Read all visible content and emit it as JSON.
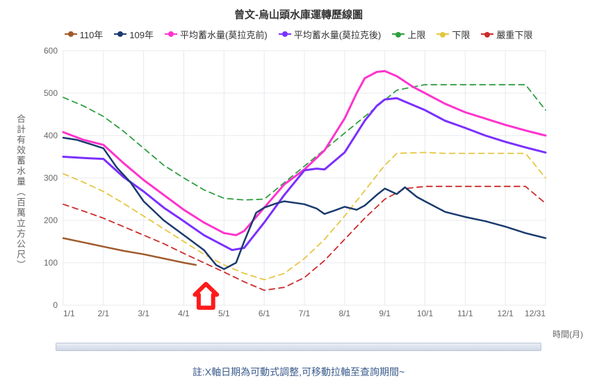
{
  "chart": {
    "type": "line",
    "title": "曾文-烏山頭水庫運轉歷線圖",
    "title_fontsize": 15,
    "ylabel": "合計有效蓄水量︵百萬立方公尺︶",
    "xlabel_right": "時間(月)",
    "note": "註:X軸日期為可動式調整,可移動拉軸至查詢期間~",
    "background_color": "#ffffff",
    "plot_border_color": "#cfd6e0",
    "grid_color": "#e6e9ee",
    "xlim": [
      "1/1",
      "12/31"
    ],
    "xticks": [
      "1/1",
      "2/1",
      "3/1",
      "4/1",
      "5/1",
      "6/1",
      "7/1",
      "8/1",
      "9/1",
      "10/1",
      "11/1",
      "12/1",
      "12/31"
    ],
    "ylim": [
      0,
      600
    ],
    "ytick_step": 100,
    "yticks": [
      0,
      100,
      200,
      300,
      400,
      500,
      600
    ],
    "tick_fontsize": 12,
    "legend_items": [
      {
        "name": "110年",
        "color": "#a05a2c",
        "lw": 2,
        "dash": "",
        "dot": true
      },
      {
        "name": "109年",
        "color": "#1a3a6e",
        "lw": 2,
        "dash": "",
        "dot": true
      },
      {
        "name": "平均蓄水量(莫拉克前)",
        "color": "#ff33cc",
        "lw": 2.5,
        "dash": "",
        "dot": true
      },
      {
        "name": "平均蓄水量(莫拉克後)",
        "color": "#7b2fff",
        "lw": 2.5,
        "dash": "",
        "dot": true
      },
      {
        "name": "上限",
        "color": "#2e9e3f",
        "lw": 1.5,
        "dash": "6,5",
        "dot": true
      },
      {
        "name": "下限",
        "color": "#e6c642",
        "lw": 1.5,
        "dash": "6,5",
        "dot": true
      },
      {
        "name": "嚴重下限",
        "color": "#cc2b2b",
        "lw": 1.5,
        "dash": "6,5",
        "dot": true
      }
    ],
    "xvals_month": [
      1,
      1.33,
      1.67,
      2,
      2.33,
      2.67,
      3,
      3.33,
      3.67,
      4,
      4.33,
      4.67,
      5,
      5.33,
      5.67,
      6,
      6.33,
      6.67,
      7,
      7.33,
      7.67,
      8,
      8.33,
      8.5,
      8.67,
      9,
      9.33,
      9.67,
      10,
      10.33,
      10.67,
      11,
      11.33,
      11.67,
      12,
      12.5,
      13
    ],
    "series": {
      "y110": {
        "color": "#a05a2c",
        "lw": 2.5,
        "dash": "",
        "x": [
          1,
          1.5,
          2,
          2.5,
          3,
          3.5,
          4,
          4.3
        ],
        "y": [
          158,
          148,
          138,
          128,
          120,
          110,
          100,
          95
        ]
      },
      "y109": {
        "color": "#1a3a6e",
        "lw": 2.5,
        "dash": "",
        "x": [
          1,
          1.33,
          1.67,
          2,
          2.33,
          2.67,
          3,
          3.5,
          4,
          4.5,
          4.8,
          5,
          5.3,
          5.5,
          5.8,
          6,
          6.3,
          6.5,
          7,
          7.3,
          7.5,
          7.8,
          8,
          8.3,
          8.5,
          8.8,
          9,
          9.3,
          9.5,
          9.8,
          10,
          10.5,
          11,
          11.5,
          12,
          12.5,
          13
        ],
        "y": [
          395,
          390,
          380,
          370,
          325,
          290,
          245,
          200,
          165,
          130,
          95,
          85,
          100,
          150,
          218,
          230,
          240,
          245,
          238,
          228,
          215,
          225,
          232,
          225,
          235,
          260,
          275,
          262,
          278,
          255,
          245,
          220,
          208,
          198,
          185,
          170,
          158
        ]
      },
      "pre_morakot": {
        "color": "#ff33cc",
        "lw": 3,
        "dash": "",
        "x": [
          1,
          1.5,
          2,
          2.5,
          3,
          3.5,
          4,
          4.5,
          5,
          5.3,
          5.5,
          6,
          6.5,
          7,
          7.5,
          8,
          8.3,
          8.5,
          8.8,
          9,
          9.3,
          9.7,
          10,
          10.5,
          11,
          11.5,
          12,
          12.5,
          13
        ],
        "y": [
          408,
          390,
          378,
          335,
          295,
          260,
          225,
          195,
          170,
          165,
          175,
          230,
          285,
          320,
          365,
          440,
          500,
          535,
          550,
          552,
          540,
          515,
          500,
          475,
          455,
          440,
          425,
          412,
          400
        ]
      },
      "post_morakot": {
        "color": "#7b2fff",
        "lw": 3,
        "dash": "",
        "x": [
          1,
          1.5,
          2,
          2.5,
          3,
          3.5,
          4,
          4.5,
          5,
          5.2,
          5.5,
          6,
          6.5,
          7,
          7.3,
          7.5,
          8,
          8.5,
          8.8,
          9,
          9.3,
          9.5,
          10,
          10.5,
          11,
          11.5,
          12,
          12.5,
          13
        ],
        "y": [
          350,
          347,
          345,
          302,
          268,
          230,
          198,
          165,
          140,
          130,
          135,
          195,
          260,
          318,
          322,
          320,
          360,
          435,
          470,
          485,
          488,
          480,
          460,
          435,
          418,
          400,
          385,
          372,
          360
        ]
      },
      "upper": {
        "color": "#2e9e3f",
        "lw": 1.8,
        "dash": "8,6",
        "x": [
          1,
          1.5,
          2,
          2.5,
          3,
          3.5,
          4,
          4.5,
          5,
          5.5,
          6,
          9.3,
          10,
          12.5,
          13
        ],
        "y": [
          490,
          470,
          445,
          410,
          370,
          330,
          300,
          272,
          252,
          248,
          250,
          507,
          520,
          520,
          460
        ]
      },
      "lower": {
        "color": "#e6c642",
        "lw": 1.8,
        "dash": "8,6",
        "x": [
          1,
          1.5,
          2,
          2.5,
          3,
          3.5,
          4,
          4.5,
          5,
          5.5,
          6,
          6.5,
          7,
          7.5,
          8,
          8.5,
          9,
          9.3,
          10,
          10.5,
          12.5,
          13
        ],
        "y": [
          310,
          290,
          268,
          240,
          210,
          180,
          150,
          120,
          95,
          75,
          60,
          75,
          110,
          155,
          210,
          270,
          330,
          358,
          360,
          358,
          358,
          300
        ]
      },
      "severe_lower": {
        "color": "#cc2b2b",
        "lw": 1.8,
        "dash": "8,6",
        "x": [
          1,
          1.5,
          2,
          2.5,
          3,
          3.5,
          4,
          4.5,
          5,
          5.5,
          6,
          6.5,
          7,
          7.5,
          8,
          8.5,
          9,
          9.5,
          10,
          12.5,
          13
        ],
        "y": [
          238,
          222,
          205,
          185,
          165,
          145,
          122,
          100,
          78,
          55,
          35,
          42,
          65,
          105,
          155,
          205,
          250,
          275,
          280,
          280,
          240
        ]
      }
    },
    "arrow": {
      "stroke": "#ff1a1a",
      "stroke_width": 6,
      "tip_month": 4.55,
      "tip_y": 50,
      "base_y": -6,
      "width": 0.55,
      "shaft_half": 0.18
    }
  }
}
